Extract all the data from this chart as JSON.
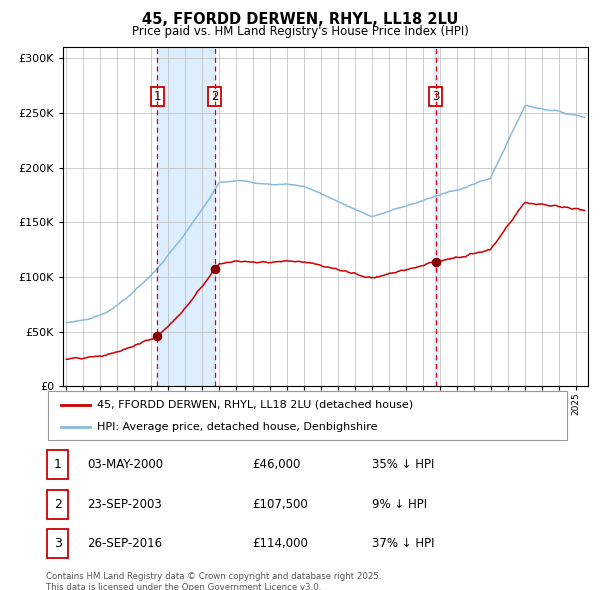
{
  "title": "45, FFORDD DERWEN, RHYL, LL18 2LU",
  "subtitle": "Price paid vs. HM Land Registry's House Price Index (HPI)",
  "ylim": [
    0,
    310000
  ],
  "yticks": [
    0,
    50000,
    100000,
    150000,
    200000,
    250000,
    300000
  ],
  "x_start_year": 1995,
  "x_end_year": 2025,
  "hpi_color": "#88bbdd",
  "price_color": "#cc0000",
  "sale_marker_color": "#880000",
  "dashed_line_color": "#dd0000",
  "shade_color": "#ddeeff",
  "background_color": "#ffffff",
  "grid_color": "#bbbbbb",
  "sale1_year": 2000.35,
  "sale1_price": 46000,
  "sale2_year": 2003.72,
  "sale2_price": 107500,
  "sale3_year": 2016.73,
  "sale3_price": 114000,
  "legend_line1": "45, FFORDD DERWEN, RHYL, LL18 2LU (detached house)",
  "legend_line2": "HPI: Average price, detached house, Denbighshire",
  "table_entries": [
    {
      "num": "1",
      "date": "03-MAY-2000",
      "price": "£46,000",
      "pct": "35% ↓ HPI"
    },
    {
      "num": "2",
      "date": "23-SEP-2003",
      "price": "£107,500",
      "pct": "9% ↓ HPI"
    },
    {
      "num": "3",
      "date": "26-SEP-2016",
      "price": "£114,000",
      "pct": "37% ↓ HPI"
    }
  ],
  "footnote": "Contains HM Land Registry data © Crown copyright and database right 2025.\nThis data is licensed under the Open Government Licence v3.0."
}
